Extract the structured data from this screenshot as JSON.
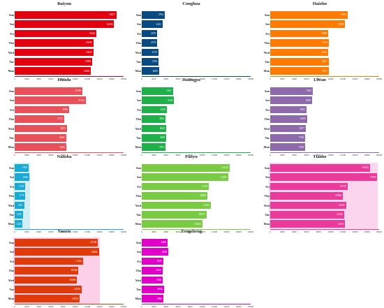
{
  "chart_data": {
    "type": "bar",
    "orientation": "horizontal",
    "days": [
      "Mon",
      "Tue",
      "Wed",
      "Thu",
      "Fri",
      "Sat",
      "Sun"
    ],
    "xlim": [
      0,
      18000
    ],
    "xticks": [
      "0",
      "2000",
      "4000",
      "6000",
      "8000",
      "10000",
      "12000",
      "14000",
      "16000",
      "18000"
    ],
    "panels": [
      {
        "title": "Baiyun",
        "color": "#e3000f",
        "highlight": "",
        "values": [
          12609,
          12863,
          13023,
          13000,
          13543,
          16436,
          16837
        ]
      },
      {
        "title": "Conghua",
        "color": "#0a4a82",
        "highlight": "",
        "values": [
          2856,
          2792,
          2729,
          2579,
          2570,
          3431,
          3794
        ]
      },
      {
        "title": "Haizhu",
        "color": "#ff7a00",
        "highlight": "",
        "values": [
          9677,
          9651,
          9614,
          9714,
          9608,
          12399,
          12834
        ]
      },
      {
        "title": "Huadu",
        "color": "#e8515a",
        "highlight": "",
        "values": [
          8484,
          8493,
          8677,
          8172,
          8998,
          11752,
          11190
        ]
      },
      {
        "title": "Huangpu",
        "color": "#1fb04a",
        "highlight": "",
        "values": [
          3972,
          4069,
          4029,
          3952,
          4150,
          5342,
          5167
        ]
      },
      {
        "title": "Liwan",
        "color": "#8e6aaa",
        "highlight": "",
        "values": [
          5790,
          5790,
          5877,
          6059,
          5983,
          6938,
          7042
        ]
      },
      {
        "title": "Nansha",
        "color": "#1aa8d4",
        "highlight": "#cfeff5",
        "values": [
          1326,
          1336,
          1567,
          1779,
          1765,
          2396,
          2305
        ]
      },
      {
        "title": "Panyu",
        "color": "#7acb44",
        "highlight": "",
        "values": [
          10004,
          10677,
          11425,
          10862,
          11119,
          14285,
          14523
        ]
      },
      {
        "title": "Tianhe",
        "color": "#ea3b9a",
        "highlight": "#fbd4ee",
        "values": [
          12391,
          12245,
          12545,
          11986,
          12755,
          17699,
          16453
        ]
      },
      {
        "title": "Yuexiu",
        "color": "#e03a0a",
        "highlight": "#fbd0e8",
        "values": [
          10734,
          11029,
          10299,
          10549,
          11352,
          13906,
          13738
        ]
      },
      {
        "title": "Zengcheng",
        "color": "#e000c8",
        "highlight": "",
        "values": [
          3590,
          3646,
          3502,
          3412,
          3575,
          4405,
          4268
        ]
      }
    ]
  }
}
